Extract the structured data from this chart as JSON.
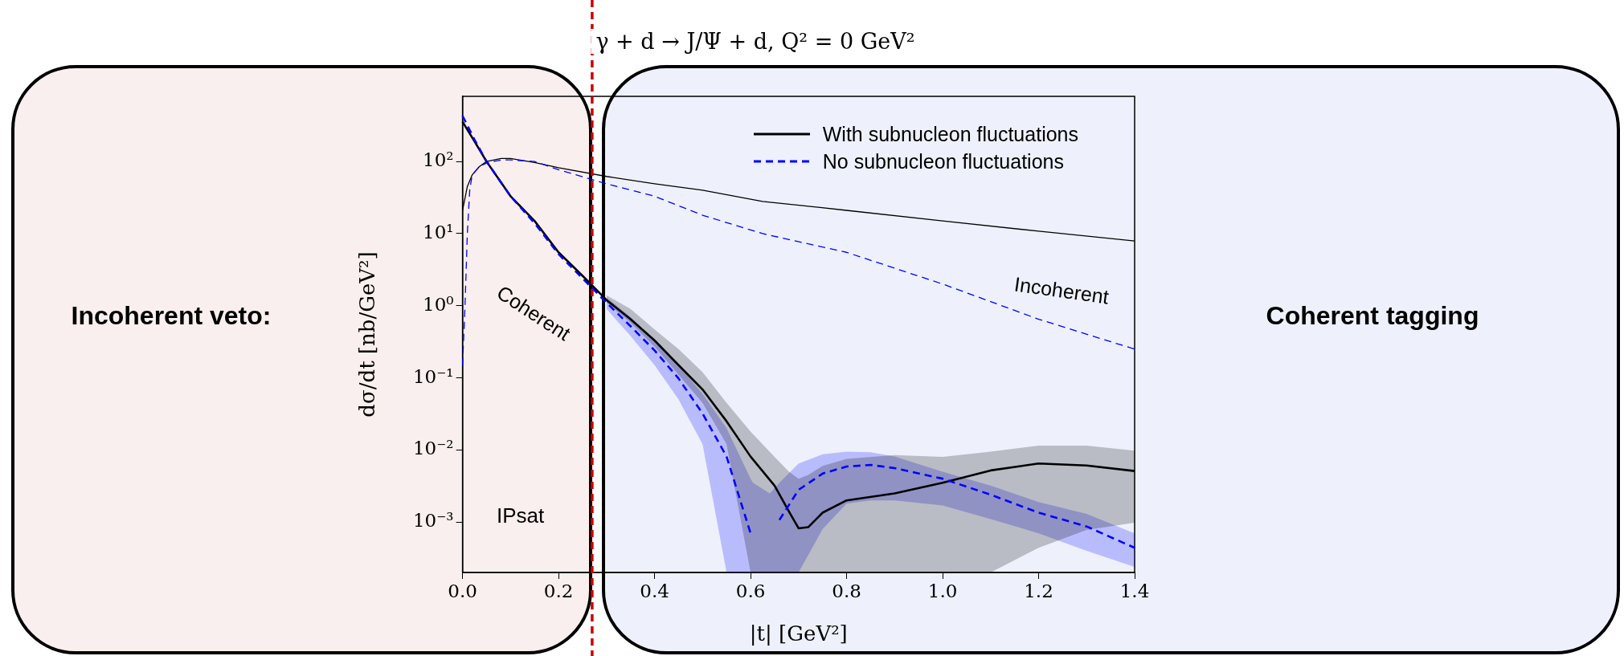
{
  "chart_data": {
    "type": "line",
    "title": "γ + d → J/Ψ + d, Q² = 0 GeV²",
    "xlabel": "|t| [GeV²]",
    "ylabel": "dσ/dt [nb/GeV²]",
    "log": "y",
    "grid": false,
    "legend": "top right",
    "marker": "none",
    "xlim": [
      0,
      1.4
    ],
    "ylim": [
      0.0002,
      800
    ],
    "xticks": [
      {
        "value": 0,
        "label": "0.0"
      },
      0.2,
      0.4,
      0.6,
      0.8,
      {
        "value": 1,
        "label": "1.0"
      },
      1.2,
      1.4
    ],
    "yticks": [
      {
        "value": 0.001,
        "label": "10⁻³"
      },
      {
        "value": 0.01,
        "label": "10⁻²"
      },
      {
        "value": 0.1,
        "label": "10⁻¹"
      },
      {
        "value": 1,
        "label": "10⁰"
      },
      {
        "value": 10,
        "label": "10¹"
      },
      {
        "value": 100,
        "label": "10²"
      }
    ],
    "ref_lines": [
      {
        "axis": "x",
        "value": 0.27,
        "color": "#cc0000",
        "line_style": "dashed"
      }
    ],
    "annotations": [
      "Coherent",
      "Incoherent",
      "IPsat"
    ],
    "bands": [
      {
        "axis": "x",
        "from": 0,
        "to": 0.27,
        "label": "Incoherent veto:",
        "color": "#f9efee"
      },
      {
        "axis": "x",
        "from": 0.29,
        "to": 1.4,
        "label": "Coherent tagging",
        "color": "#eef1fc"
      }
    ],
    "series": [
      {
        "name": "With subnucleon fluctuations",
        "type": "line",
        "color": "#000000",
        "line_style": "solid",
        "x": [
          0,
          0.025,
          0.05,
          0.1,
          0.15,
          0.2,
          0.25,
          0.3,
          0.35,
          0.4,
          0.45,
          0.5,
          0.55,
          0.6,
          0.65,
          0.68,
          0.7,
          0.72,
          0.75,
          0.8,
          0.9,
          1.0,
          1.1,
          1.2,
          1.3,
          1.4
        ],
        "values": [
          355,
          190,
          100,
          33,
          15,
          5.5,
          2.6,
          1.2,
          0.65,
          0.33,
          0.15,
          0.069,
          0.025,
          0.0081,
          0.0032,
          0.0014,
          0.00082,
          0.00085,
          0.00135,
          0.002,
          0.0025,
          0.0035,
          0.0052,
          0.0065,
          0.0061,
          0.0051
        ],
        "lower": [
          null,
          null,
          null,
          null,
          null,
          null,
          null,
          1.1,
          0.58,
          0.27,
          0.11,
          0.045,
          0.012,
          0.0002,
          0.0002,
          0.0002,
          0.0002,
          0.0002,
          0.0002,
          0.0002,
          0.0002,
          0.0002,
          0.0002,
          0.00044,
          0.00078,
          0.00098
        ],
        "upper": [
          null,
          null,
          null,
          null,
          null,
          null,
          null,
          1.4,
          0.9,
          0.47,
          0.25,
          0.12,
          0.045,
          0.018,
          0.008,
          0.005,
          0.004,
          0.0045,
          0.006,
          0.0075,
          0.0085,
          0.008,
          0.0095,
          0.0115,
          0.0115,
          0.0098
        ]
      },
      {
        "name": "No subnucleon fluctuations",
        "type": "line",
        "color": "#0000ff",
        "line_style": "dashed",
        "x": [
          0,
          0.025,
          0.05,
          0.1,
          0.15,
          0.2,
          0.25,
          0.3,
          0.35,
          0.4,
          0.45,
          0.5,
          0.55,
          0.6,
          0.605,
          0.64,
          0.66,
          0.7,
          0.75,
          0.8,
          0.85,
          0.9,
          1.0,
          1.1,
          1.2,
          1.3,
          1.4
        ],
        "values": [
          430,
          200,
          100,
          33,
          14,
          5.2,
          2.4,
          1.1,
          0.52,
          0.24,
          0.098,
          0.032,
          0.0081,
          0.0007,
          null,
          null,
          0.00107,
          0.0028,
          0.0047,
          0.0059,
          0.0062,
          0.0056,
          0.004,
          0.0024,
          0.00135,
          0.00087,
          0.00044
        ],
        "lower": [
          null,
          null,
          null,
          null,
          null,
          null,
          null,
          0.9,
          0.38,
          0.15,
          0.05,
          0.012,
          0.0002,
          0.0002,
          0.0002,
          0.0002,
          0.0002,
          0.0002,
          0.0008,
          0.0018,
          0.002,
          0.002,
          0.0017,
          0.0011,
          0.0007,
          0.0004,
          0.00024
        ],
        "upper": [
          null,
          null,
          null,
          null,
          null,
          null,
          null,
          1.3,
          0.7,
          0.33,
          0.15,
          0.06,
          0.02,
          0.004,
          0.0035,
          0.0025,
          0.0035,
          0.0065,
          0.0087,
          0.0095,
          0.0093,
          0.0081,
          0.005,
          0.0032,
          0.0019,
          0.0013,
          0.0007
        ]
      },
      {
        "type": "line",
        "color": "#000000",
        "line_style": "solid",
        "x": [
          0,
          0.01,
          0.02,
          0.035,
          0.05,
          0.08,
          0.1,
          0.15,
          0.2,
          0.3,
          0.4,
          0.5,
          0.625,
          0.8,
          1.0,
          1.2,
          1.4
        ],
        "values": [
          21,
          45,
          65,
          85,
          100,
          110,
          110,
          97,
          82,
          62,
          49,
          40,
          28,
          21,
          15,
          10.8,
          7.9
        ]
      },
      {
        "type": "line",
        "color": "#0000ff",
        "line_style": "dashed",
        "x": [
          0,
          0.005,
          0.01,
          0.015,
          0.02,
          0.035,
          0.05,
          0.08,
          0.1,
          0.15,
          0.2,
          0.3,
          0.4,
          0.5,
          0.625,
          0.8,
          1.0,
          1.2,
          1.4
        ],
        "values": [
          0.15,
          0.9,
          10,
          40,
          65,
          85,
          95,
          105,
          105,
          100,
          77,
          49,
          33,
          18,
          10,
          5.5,
          2.0,
          0.65,
          0.25
        ]
      }
    ]
  }
}
